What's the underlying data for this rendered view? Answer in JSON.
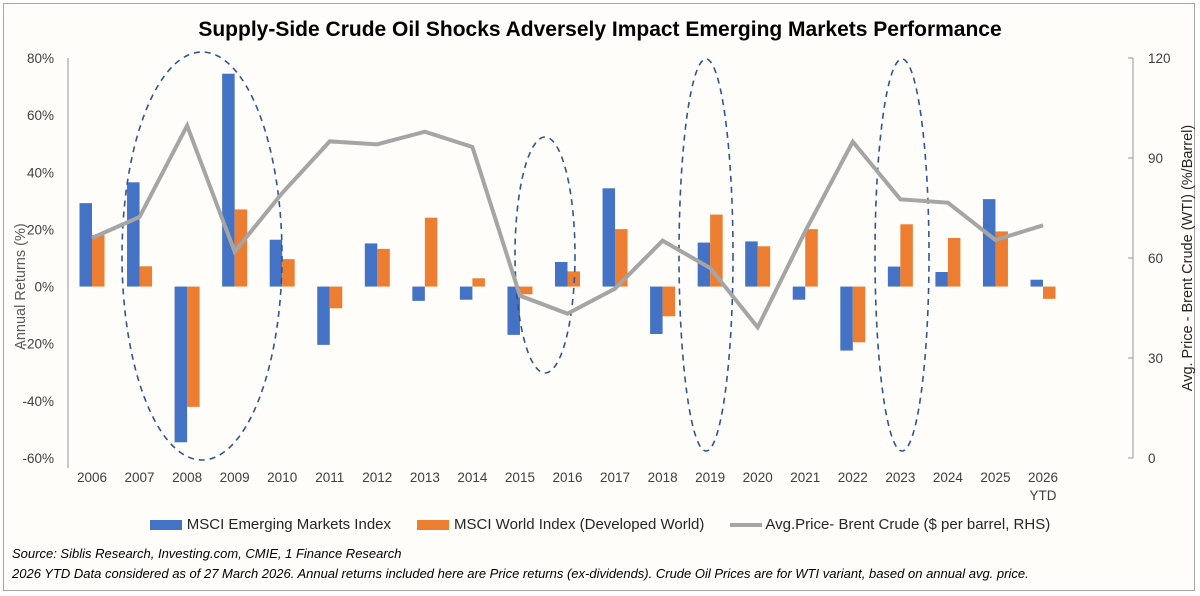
{
  "chart_data": {
    "type": "bar",
    "title": "Supply-Side Crude Oil Shocks Adversely Impact Emerging Markets Performance",
    "ylabel": "Annual Returns (%)",
    "y2label": "Avg. Price - Brent Crude (WTI) (%/Barrel)",
    "xlabel": "",
    "ylim": [
      -60,
      80
    ],
    "y2lim": [
      0,
      120
    ],
    "yticks": [
      "80%",
      "60%",
      "40%",
      "20%",
      "0%",
      "-20%",
      "-40%",
      "-60%"
    ],
    "ytick_values": [
      80,
      60,
      40,
      20,
      0,
      -20,
      -40,
      -60
    ],
    "y2ticks": [
      "120",
      "90",
      "60",
      "30",
      "0"
    ],
    "y2tick_values": [
      120,
      90,
      60,
      30,
      0
    ],
    "categories": [
      "2006",
      "2007",
      "2008",
      "2009",
      "2010",
      "2011",
      "2012",
      "2013",
      "2014",
      "2015",
      "2016",
      "2017",
      "2018",
      "2019",
      "2020",
      "2021",
      "2022",
      "2023",
      "2024",
      "2025",
      "2026 YTD"
    ],
    "category_lines": [
      [
        "2006"
      ],
      [
        "2007"
      ],
      [
        "2008"
      ],
      [
        "2009"
      ],
      [
        "2010"
      ],
      [
        "2011"
      ],
      [
        "2012"
      ],
      [
        "2013"
      ],
      [
        "2014"
      ],
      [
        "2015"
      ],
      [
        "2016"
      ],
      [
        "2017"
      ],
      [
        "2018"
      ],
      [
        "2019"
      ],
      [
        "2020"
      ],
      [
        "2021"
      ],
      [
        "2022"
      ],
      [
        "2023"
      ],
      [
        "2024"
      ],
      [
        "2025"
      ],
      [
        "2026",
        "YTD"
      ]
    ],
    "series": [
      {
        "name": "MSCI Emerging Markets Index",
        "type": "bar",
        "axis": "left",
        "color": "#4472c4",
        "values": [
          29.2,
          36.5,
          -54.5,
          74.5,
          16.4,
          -20.4,
          15.1,
          -5.0,
          -4.6,
          -16.9,
          8.6,
          34.4,
          -16.6,
          15.4,
          15.8,
          -4.6,
          -22.4,
          7.0,
          5.1,
          30.6,
          2.4
        ]
      },
      {
        "name": "MSCI World Index (Developed World)",
        "type": "bar",
        "axis": "left",
        "color": "#ed7d31",
        "values": [
          18.0,
          7.1,
          -42.1,
          27.0,
          9.6,
          -7.6,
          13.2,
          24.1,
          2.9,
          -2.7,
          5.3,
          20.1,
          -10.4,
          25.2,
          14.1,
          20.1,
          -19.5,
          21.8,
          17.0,
          19.3,
          -4.3
        ]
      },
      {
        "name": "Avg.Price- Brent Crude ($ per barrel, RHS)",
        "type": "line",
        "axis": "right",
        "color": "#a5a5a5",
        "values": [
          66.0,
          72.3,
          99.7,
          61.9,
          79.5,
          95.0,
          94.1,
          97.9,
          93.3,
          48.7,
          43.3,
          50.8,
          65.2,
          57.0,
          39.2,
          68.0,
          94.9,
          77.6,
          76.6,
          65.4,
          69.8
        ]
      }
    ],
    "highlighted_periods": [
      "2008-2009",
      "2015",
      "2018",
      "2022"
    ],
    "legend_position": "bottom",
    "grid": false
  },
  "legend": [
    {
      "label": "MSCI Emerging Markets Index",
      "color": "#4472c4",
      "kind": "bar"
    },
    {
      "label": "MSCI World Index (Developed World)",
      "color": "#ed7d31",
      "kind": "bar"
    },
    {
      "label": "Avg.Price- Brent Crude ($ per barrel, RHS)",
      "color": "#a5a5a5",
      "kind": "line"
    }
  ],
  "footnotes": {
    "source": "Source: Siblis Research, Investing.com, CMIE, 1 Finance Research",
    "note": "2026 YTD Data considered as of 27 March 2026. Annual returns included here are Price returns (ex-dividends). Crude Oil Prices are for WTI variant, based on annual avg. price."
  }
}
